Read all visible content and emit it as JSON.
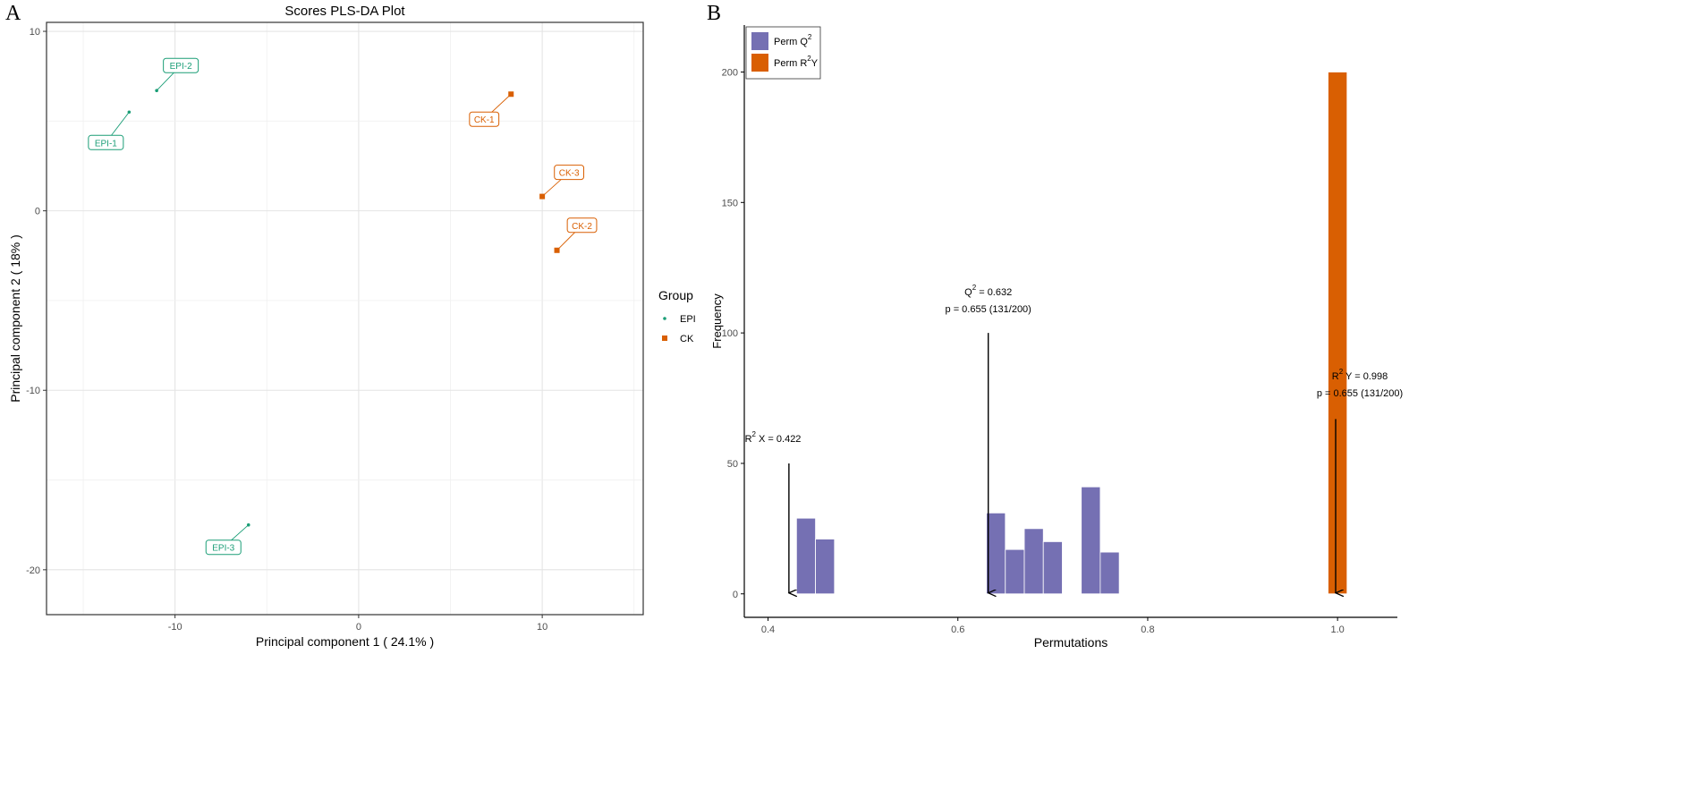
{
  "panel_a": {
    "letter": "A"
  },
  "panel_b": {
    "letter": "B"
  },
  "chart_data": [
    {
      "type": "scatter",
      "title": "Scores PLS-DA Plot",
      "xlabel": "Principal component 1 ( 24.1% )",
      "ylabel": "Principal component 2 ( 18% )",
      "xlim": [
        -17,
        15.5
      ],
      "ylim": [
        -22.5,
        10.5
      ],
      "xticks": [
        -10,
        0,
        10
      ],
      "yticks": [
        10,
        0,
        -10,
        -20
      ],
      "grid": true,
      "legend": {
        "title": "Group",
        "position": "right",
        "entries": [
          {
            "name": "EPI",
            "color": "#1b9e77",
            "marker": "dot"
          },
          {
            "name": "CK",
            "color": "#d95f02",
            "marker": "square"
          }
        ]
      },
      "series": [
        {
          "name": "EPI",
          "color": "#1b9e77",
          "points": [
            {
              "label": "EPI-1",
              "x": -12.5,
              "y": 5.5
            },
            {
              "label": "EPI-2",
              "x": -11.0,
              "y": 6.7
            },
            {
              "label": "EPI-3",
              "x": -6.0,
              "y": -17.5
            }
          ]
        },
        {
          "name": "CK",
          "color": "#d95f02",
          "points": [
            {
              "label": "CK-1",
              "x": 8.3,
              "y": 6.5
            },
            {
              "label": "CK-3",
              "x": 10.0,
              "y": 0.8
            },
            {
              "label": "CK-2",
              "x": 10.8,
              "y": -2.2
            }
          ]
        }
      ]
    },
    {
      "type": "bar",
      "title": "",
      "xlabel": "Permutations",
      "ylabel": "Frequency",
      "xlim": [
        0.375,
        1.063
      ],
      "ylim": [
        -9,
        218
      ],
      "xticks": [
        "0.4",
        "0.6",
        "0.8",
        "1.0"
      ],
      "xtick_values": [
        0.4,
        0.6,
        0.8,
        1.0
      ],
      "yticks": [
        0,
        50,
        100,
        150,
        200
      ],
      "grid": false,
      "legend": {
        "position": "top-left",
        "entries": [
          {
            "name": "Perm Q",
            "sup": "2",
            "suffix": "",
            "color": "#7570b3"
          },
          {
            "name": "Perm R",
            "sup": "2",
            "suffix": "Y",
            "color": "#d95f02"
          }
        ]
      },
      "series": [
        {
          "name": "Perm Q2",
          "color": "#7570b3",
          "bin_width": 0.02,
          "bins": [
            {
              "x0": 0.43,
              "count": 29
            },
            {
              "x0": 0.45,
              "count": 21
            },
            {
              "x0": 0.63,
              "count": 31
            },
            {
              "x0": 0.65,
              "count": 17
            },
            {
              "x0": 0.67,
              "count": 25
            },
            {
              "x0": 0.69,
              "count": 20
            },
            {
              "x0": 0.73,
              "count": 41
            },
            {
              "x0": 0.75,
              "count": 16
            }
          ]
        },
        {
          "name": "Perm R2Y",
          "color": "#d95f02",
          "bin_width": 0.02,
          "bins": [
            {
              "x0": 0.99,
              "count": 200
            }
          ]
        }
      ],
      "annotations": [
        {
          "id": "r2x",
          "arrow_x": 0.422,
          "arrow_from": 50,
          "arrow_to": 0,
          "lines": [
            {
              "pre": "R",
              "sup": "2",
              "post": " X = 0.422"
            }
          ]
        },
        {
          "id": "q2",
          "arrow_x": 0.632,
          "arrow_from": 100,
          "arrow_to": 0,
          "lines": [
            {
              "pre": "Q",
              "sup": "2",
              "post": " = 0.632"
            },
            {
              "pre": "p = 0.655 (131/200)",
              "sup": "",
              "post": ""
            }
          ]
        },
        {
          "id": "r2y",
          "arrow_x": 0.998,
          "arrow_from": 67,
          "arrow_to": 0,
          "lines": [
            {
              "pre": "R",
              "sup": "2",
              "post": " Y = 0.998"
            },
            {
              "pre": "p = 0.655 (131/200)",
              "sup": "",
              "post": ""
            }
          ]
        }
      ]
    }
  ]
}
